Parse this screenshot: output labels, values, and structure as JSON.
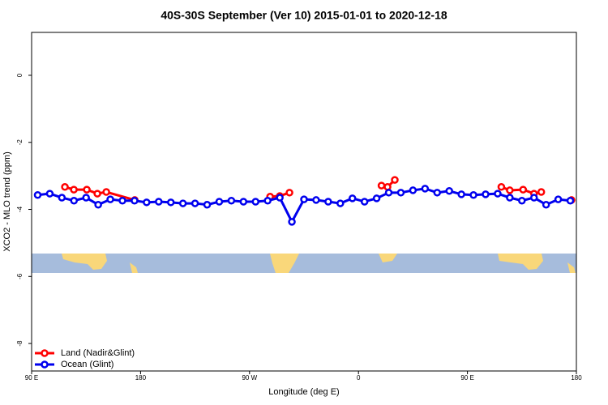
{
  "chart_data": {
    "type": "line",
    "title": "40S-30S September (Ver 10)   2015-01-01 to 2020-12-18",
    "xlabel": "Longitude (deg E)",
    "ylabel": "XCO2 - MLO trend (ppm)",
    "xlim": [
      90,
      540
    ],
    "ylim": [
      -8.82,
      1.28
    ],
    "xticks": [
      {
        "value": 90,
        "label": "90 E"
      },
      180,
      {
        "value": 270,
        "label": "90 W"
      },
      {
        "value": 360,
        "label": "0"
      },
      {
        "value": 450,
        "label": "90 E"
      },
      {
        "value": 540,
        "label": "180"
      }
    ],
    "yticks": [
      0,
      -2,
      -4,
      -6,
      -8
    ],
    "legend": "bottom-left",
    "series": [
      {
        "name": "Land (Nadir&Glint)",
        "color": "#ff0000",
        "x": [
          117.5,
          124.9,
          135.6,
          144.3,
          151.7,
          175.2,
          230,
          287,
          295,
          303,
          340,
          379,
          384,
          390,
          430,
          478,
          485,
          496,
          505,
          511,
          520,
          536
        ],
        "values": [
          -3.33,
          -3.41,
          -3.41,
          -3.53,
          -3.48,
          -3.72,
          null,
          -3.62,
          -3.6,
          -3.5,
          null,
          -3.29,
          -3.33,
          -3.12,
          null,
          -3.33,
          -3.43,
          -3.41,
          -3.53,
          -3.48,
          null,
          -3.72
        ]
      },
      {
        "name": "Ocean (Glint)",
        "color": "#0000ee",
        "x": [
          95,
          105,
          115,
          125,
          135,
          145,
          155,
          165,
          175,
          185,
          195,
          205,
          215,
          225,
          235,
          245,
          255,
          265,
          275,
          285,
          295,
          305,
          315,
          325,
          335,
          345,
          355,
          365,
          375,
          385,
          395,
          405,
          415,
          425,
          435,
          445,
          455,
          465,
          475,
          485,
          495,
          505,
          515,
          525,
          535
        ],
        "values": [
          -3.57,
          -3.53,
          -3.65,
          -3.74,
          -3.65,
          -3.86,
          -3.7,
          -3.74,
          -3.74,
          -3.79,
          -3.77,
          -3.79,
          -3.82,
          -3.82,
          -3.86,
          -3.77,
          -3.74,
          -3.77,
          -3.77,
          -3.74,
          -3.65,
          -4.37,
          -3.7,
          -3.72,
          -3.77,
          -3.82,
          -3.67,
          -3.77,
          -3.67,
          -3.5,
          -3.5,
          -3.43,
          -3.38,
          -3.5,
          -3.45,
          -3.55,
          -3.57,
          -3.55,
          -3.53,
          -3.65,
          -3.74,
          -3.65,
          -3.86,
          -3.7,
          -3.74
        ]
      }
    ]
  }
}
